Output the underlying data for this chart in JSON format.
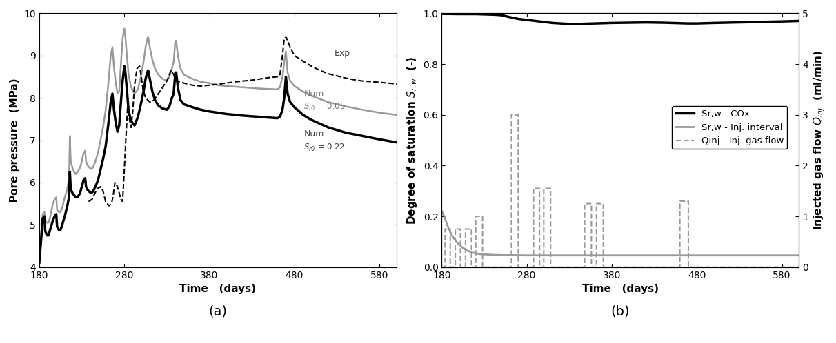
{
  "fig_width": 12.12,
  "fig_height": 4.98,
  "dpi": 100,
  "subplot_a": {
    "xlim": [
      180,
      600
    ],
    "ylim": [
      4,
      10
    ],
    "xticks": [
      180,
      280,
      380,
      480,
      580
    ],
    "yticks": [
      4,
      5,
      6,
      7,
      8,
      9,
      10
    ],
    "xlabel": "Time   (days)",
    "ylabel": "Pore pressure  (MPa)"
  },
  "subplot_b": {
    "xlim": [
      180,
      600
    ],
    "ylim_left": [
      0.0,
      1.0
    ],
    "ylim_right": [
      0,
      5
    ],
    "xticks": [
      180,
      280,
      380,
      480,
      580
    ],
    "yticks_left": [
      0.0,
      0.2,
      0.4,
      0.6,
      0.8,
      1.0
    ],
    "yticks_right": [
      0,
      1,
      2,
      3,
      4,
      5
    ],
    "xlabel": "Time   (days)",
    "ylabel_left": "Degree of saturation $S_{r,w}$  (-)",
    "ylabel_right": "Injected gas flow $Q_{inj}$  (ml/min)"
  }
}
